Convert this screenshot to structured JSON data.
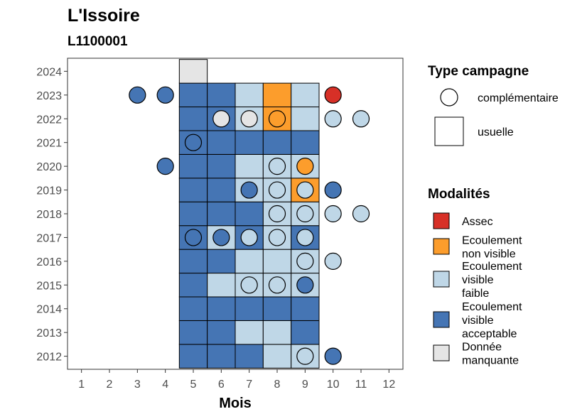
{
  "chart_data": {
    "type": "heatmap",
    "title": "L'Issoire",
    "subtitle": "L1100001",
    "xlabel": "Mois",
    "ylabel": "",
    "x_ticks": [
      1,
      2,
      3,
      4,
      5,
      6,
      7,
      8,
      9,
      10,
      11,
      12
    ],
    "y_ticks": [
      2012,
      2013,
      2014,
      2015,
      2016,
      2017,
      2018,
      2019,
      2020,
      2021,
      2022,
      2023,
      2024
    ],
    "xlim": [
      0.5,
      12.5
    ],
    "ylim": [
      2011.45,
      2024.55
    ],
    "grid": false,
    "legend_placement": "right",
    "legend_shape": {
      "title": "Type campagne",
      "entries": [
        {
          "label": "complémentaire",
          "shape": "circle"
        },
        {
          "label": "usuelle",
          "shape": "square"
        }
      ]
    },
    "legend_fill": {
      "title": "Modalités",
      "entries": [
        {
          "key": "assec",
          "label_lines": [
            "Assec"
          ],
          "color": "#d73027"
        },
        {
          "key": "nonvisible",
          "label_lines": [
            "Ecoulement",
            "non visible"
          ],
          "color": "#fc9d2c"
        },
        {
          "key": "faible",
          "label_lines": [
            "Ecoulement",
            "visible",
            "faible"
          ],
          "color": "#bfd7e7"
        },
        {
          "key": "acceptable",
          "label_lines": [
            "Ecoulement",
            "visible",
            "acceptable"
          ],
          "color": "#4575b4"
        },
        {
          "key": "manquante",
          "label_lines": [
            "Donnée",
            "manquante"
          ],
          "color": "#e5e5e5"
        }
      ]
    },
    "usuelle": [
      {
        "year": 2012,
        "months": {
          "5": "acceptable",
          "6": "acceptable",
          "7": "acceptable",
          "8": "faible",
          "9": "faible"
        }
      },
      {
        "year": 2013,
        "months": {
          "5": "acceptable",
          "6": "acceptable",
          "7": "faible",
          "8": "faible",
          "9": "acceptable"
        }
      },
      {
        "year": 2014,
        "months": {
          "5": "acceptable",
          "6": "acceptable",
          "7": "acceptable",
          "8": "acceptable",
          "9": "acceptable"
        }
      },
      {
        "year": 2015,
        "months": {
          "5": "acceptable",
          "6": "faible",
          "7": "faible",
          "8": "faible",
          "9": "faible"
        }
      },
      {
        "year": 2016,
        "months": {
          "5": "acceptable",
          "6": "acceptable",
          "7": "faible",
          "8": "faible",
          "9": "faible"
        }
      },
      {
        "year": 2017,
        "months": {
          "5": "acceptable",
          "6": "faible",
          "7": "acceptable",
          "8": "faible",
          "9": "acceptable"
        }
      },
      {
        "year": 2018,
        "months": {
          "5": "acceptable",
          "6": "acceptable",
          "7": "acceptable",
          "8": "faible",
          "9": "faible"
        }
      },
      {
        "year": 2019,
        "months": {
          "5": "acceptable",
          "6": "acceptable",
          "7": "faible",
          "8": "faible",
          "9": "nonvisible"
        }
      },
      {
        "year": 2020,
        "months": {
          "5": "acceptable",
          "6": "acceptable",
          "7": "faible",
          "8": "faible",
          "9": "faible"
        }
      },
      {
        "year": 2021,
        "months": {
          "5": "acceptable",
          "6": "acceptable",
          "7": "acceptable",
          "8": "acceptable",
          "9": "acceptable"
        }
      },
      {
        "year": 2022,
        "months": {
          "5": "acceptable",
          "6": "acceptable",
          "7": "faible",
          "8": "nonvisible",
          "9": "faible"
        }
      },
      {
        "year": 2023,
        "months": {
          "5": "acceptable",
          "6": "acceptable",
          "7": "faible",
          "8": "nonvisible",
          "9": "faible"
        }
      },
      {
        "year": 2024,
        "months": {
          "5": "manquante"
        }
      }
    ],
    "complementaire": [
      {
        "year": 2012,
        "month": 9,
        "modalite": "faible"
      },
      {
        "year": 2012,
        "month": 10,
        "modalite": "acceptable"
      },
      {
        "year": 2015,
        "month": 7,
        "modalite": "faible"
      },
      {
        "year": 2015,
        "month": 8,
        "modalite": "faible"
      },
      {
        "year": 2015,
        "month": 9,
        "modalite": "acceptable"
      },
      {
        "year": 2016,
        "month": 9,
        "modalite": "faible"
      },
      {
        "year": 2016,
        "month": 10,
        "modalite": "faible"
      },
      {
        "year": 2017,
        "month": 5,
        "modalite": "acceptable"
      },
      {
        "year": 2017,
        "month": 6,
        "modalite": "acceptable"
      },
      {
        "year": 2017,
        "month": 7,
        "modalite": "faible"
      },
      {
        "year": 2017,
        "month": 8,
        "modalite": "faible"
      },
      {
        "year": 2017,
        "month": 9,
        "modalite": "faible"
      },
      {
        "year": 2018,
        "month": 8,
        "modalite": "faible"
      },
      {
        "year": 2018,
        "month": 9,
        "modalite": "faible"
      },
      {
        "year": 2018,
        "month": 10,
        "modalite": "faible"
      },
      {
        "year": 2018,
        "month": 11,
        "modalite": "faible"
      },
      {
        "year": 2019,
        "month": 7,
        "modalite": "acceptable"
      },
      {
        "year": 2019,
        "month": 8,
        "modalite": "faible"
      },
      {
        "year": 2019,
        "month": 9,
        "modalite": "faible"
      },
      {
        "year": 2019,
        "month": 10,
        "modalite": "acceptable"
      },
      {
        "year": 2020,
        "month": 4,
        "modalite": "acceptable"
      },
      {
        "year": 2020,
        "month": 8,
        "modalite": "faible"
      },
      {
        "year": 2020,
        "month": 9,
        "modalite": "nonvisible"
      },
      {
        "year": 2021,
        "month": 5,
        "modalite": "acceptable"
      },
      {
        "year": 2022,
        "month": 6,
        "modalite": "manquante"
      },
      {
        "year": 2022,
        "month": 7,
        "modalite": "manquante"
      },
      {
        "year": 2022,
        "month": 8,
        "modalite": "nonvisible"
      },
      {
        "year": 2022,
        "month": 10,
        "modalite": "faible"
      },
      {
        "year": 2022,
        "month": 11,
        "modalite": "faible"
      },
      {
        "year": 2023,
        "month": 3,
        "modalite": "acceptable"
      },
      {
        "year": 2023,
        "month": 4,
        "modalite": "acceptable"
      },
      {
        "year": 2023,
        "month": 10,
        "modalite": "assec"
      }
    ]
  }
}
